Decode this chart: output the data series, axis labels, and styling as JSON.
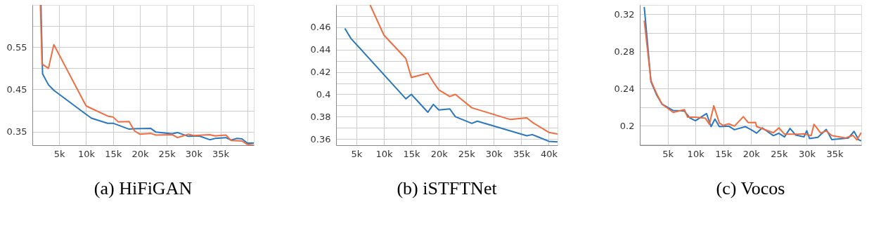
{
  "chart_data": [
    {
      "type": "line",
      "title": "(a) HiFiGAN",
      "grid": true,
      "line_style": "solid",
      "xlim": [
        0,
        41200
      ],
      "ylim": [
        0.318,
        0.65
      ],
      "xticks": [
        {
          "value": 5000,
          "label": "5k"
        },
        {
          "value": 10000,
          "label": "10k"
        },
        {
          "value": 15000,
          "label": "15k"
        },
        {
          "value": 20000,
          "label": "20k"
        },
        {
          "value": 25000,
          "label": "25k"
        },
        {
          "value": 30000,
          "label": "30k"
        },
        {
          "value": 35000,
          "label": "35k"
        },
        {
          "value": 40000,
          "label": null
        }
      ],
      "yticks": [
        0.35,
        {
          "value": 0.4,
          "label": null
        },
        0.45,
        {
          "value": 0.5,
          "label": null
        },
        0.55,
        {
          "value": 0.6,
          "label": null
        }
      ],
      "series": [
        {
          "color": "#2877c0",
          "x": [
            1600,
            1900,
            3000,
            4000,
            10000,
            11000,
            14000,
            15000,
            18000,
            19000,
            22000,
            23000,
            26000,
            27000,
            29000,
            31000,
            33000,
            34000,
            36000,
            37000,
            38000,
            39000,
            40000,
            41200
          ],
          "values": [
            0.65,
            0.487,
            0.461,
            0.448,
            0.391,
            0.382,
            0.37,
            0.37,
            0.356,
            0.357,
            0.358,
            0.349,
            0.345,
            0.348,
            0.339,
            0.34,
            0.331,
            0.334,
            0.336,
            0.33,
            0.334,
            0.333,
            0.323,
            0.323
          ]
        },
        {
          "color": "#f06c3e",
          "x": [
            1500,
            1800,
            3000,
            4000,
            10000,
            14000,
            15000,
            16000,
            18000,
            19000,
            20000,
            22000,
            23000,
            26000,
            27000,
            29000,
            30000,
            33000,
            34000,
            36000,
            37000,
            39000,
            40000,
            41200
          ],
          "values": [
            0.65,
            0.51,
            0.5,
            0.556,
            0.411,
            0.387,
            0.385,
            0.373,
            0.374,
            0.352,
            0.344,
            0.346,
            0.342,
            0.343,
            0.336,
            0.344,
            0.341,
            0.343,
            0.34,
            0.342,
            0.329,
            0.328,
            0.32,
            0.318
          ]
        }
      ]
    },
    {
      "type": "line",
      "title": "(b) iSTFTNet",
      "grid": true,
      "line_style": "solid",
      "xlim": [
        1300,
        41600
      ],
      "ylim": [
        0.3545,
        0.48
      ],
      "xticks": [
        {
          "value": 5000,
          "label": "5k"
        },
        {
          "value": 10000,
          "label": "10k"
        },
        {
          "value": 15000,
          "label": "15k"
        },
        {
          "value": 20000,
          "label": "20k"
        },
        {
          "value": 25000,
          "label": "25k"
        },
        {
          "value": 30000,
          "label": "30k"
        },
        {
          "value": 35000,
          "label": "35k"
        },
        {
          "value": 40000,
          "label": "40k"
        }
      ],
      "yticks": [
        0.36,
        {
          "value": 0.37,
          "label": null
        },
        0.38,
        {
          "value": 0.39,
          "label": null
        },
        0.4,
        {
          "value": 0.41,
          "label": null
        },
        0.42,
        {
          "value": 0.43,
          "label": null
        },
        0.44,
        {
          "value": 0.45,
          "label": null
        },
        0.46,
        {
          "value": 0.47,
          "label": null
        }
      ],
      "series": [
        {
          "color": "#2877c0",
          "x": [
            2900,
            4000,
            14000,
            15000,
            18000,
            19000,
            20000,
            22000,
            23000,
            26000,
            27000,
            36000,
            37000,
            38000,
            40000,
            41600
          ],
          "values": [
            0.459,
            0.45,
            0.396,
            0.4,
            0.384,
            0.391,
            0.386,
            0.387,
            0.38,
            0.374,
            0.376,
            0.363,
            0.364,
            0.362,
            0.358,
            0.3575
          ]
        },
        {
          "color": "#f06c3e",
          "x": [
            7500,
            10000,
            14000,
            15000,
            18000,
            19000,
            20000,
            22000,
            23000,
            26000,
            33000,
            36000,
            37000,
            40000,
            41600
          ],
          "values": [
            0.48,
            0.453,
            0.432,
            0.415,
            0.419,
            0.411,
            0.404,
            0.398,
            0.4,
            0.388,
            0.3775,
            0.379,
            0.375,
            0.366,
            0.3646
          ]
        }
      ]
    },
    {
      "type": "line",
      "title": "(c) Vocos",
      "grid": true,
      "line_style": "solid",
      "xlim": [
        0,
        39800
      ],
      "ylim": [
        0.179,
        0.33
      ],
      "xticks": [
        {
          "value": 5000,
          "label": "5k"
        },
        {
          "value": 10000,
          "label": "10k"
        },
        {
          "value": 15000,
          "label": "15k"
        },
        {
          "value": 20000,
          "label": "20k"
        },
        {
          "value": 25000,
          "label": "25k"
        },
        {
          "value": 30000,
          "label": "30k"
        },
        {
          "value": 35000,
          "label": "35k"
        }
      ],
      "yticks": [
        {
          "value": 0.18,
          "label": null
        },
        0.2,
        {
          "value": 0.22,
          "label": null
        },
        0.24,
        {
          "value": 0.26,
          "label": null
        },
        0.28,
        {
          "value": 0.3,
          "label": null
        },
        0.32
      ],
      "series": [
        {
          "color": "#2877c0",
          "x": [
            800,
            2000,
            3000,
            4000,
            6000,
            8000,
            9000,
            10000,
            12000,
            12800,
            13500,
            14300,
            16000,
            17000,
            19000,
            20000,
            21000,
            22000,
            24000,
            25000,
            26000,
            27000,
            28000,
            29500,
            30000,
            30500,
            32000,
            33500,
            34500,
            37500,
            38500,
            39300,
            39800
          ],
          "values": [
            0.3276,
            0.2474,
            0.2334,
            0.2232,
            0.2163,
            0.2158,
            0.2084,
            0.2054,
            0.213,
            0.199,
            0.2071,
            0.199,
            0.1995,
            0.1957,
            0.199,
            0.1957,
            0.192,
            0.1977,
            0.1893,
            0.1918,
            0.188,
            0.197,
            0.19,
            0.188,
            0.1946,
            0.1862,
            0.1875,
            0.196,
            0.185,
            0.1868,
            0.1939,
            0.185,
            0.1837
          ]
        },
        {
          "color": "#f06c3e",
          "x": [
            800,
            2000,
            3000,
            4000,
            6000,
            8000,
            8600,
            10000,
            11800,
            12500,
            13300,
            14300,
            15000,
            16000,
            17000,
            18600,
            19500,
            20800,
            21000,
            24000,
            25000,
            26000,
            28500,
            29500,
            30800,
            31300,
            32500,
            33500,
            34500,
            37000,
            38300,
            39000,
            39800
          ],
          "values": [
            0.3131,
            0.2487,
            0.2347,
            0.2232,
            0.2143,
            0.2173,
            0.2092,
            0.2092,
            0.208,
            0.2015,
            0.2214,
            0.2028,
            0.2003,
            0.202,
            0.1995,
            0.2097,
            0.2033,
            0.2036,
            0.199,
            0.1924,
            0.1977,
            0.1908,
            0.1908,
            0.1913,
            0.1893,
            0.2015,
            0.1921,
            0.1944,
            0.1893,
            0.1868,
            0.1896,
            0.1847,
            0.1926
          ]
        }
      ]
    }
  ]
}
